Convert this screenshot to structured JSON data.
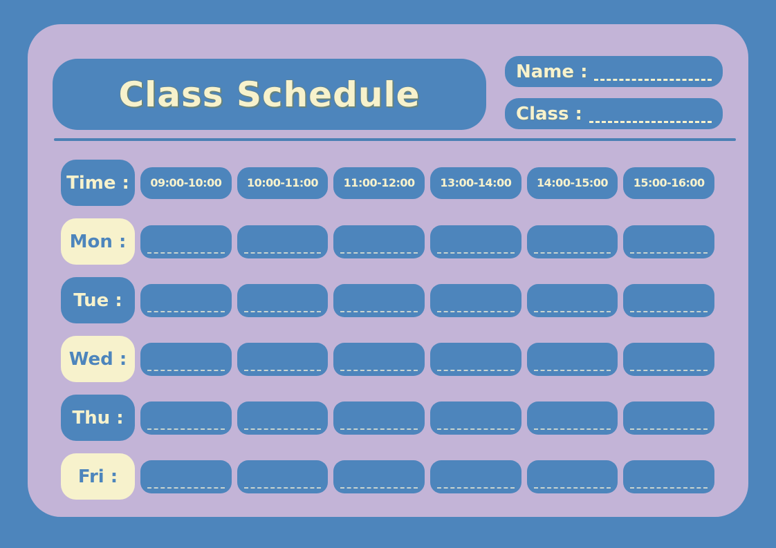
{
  "title": "Class Schedule",
  "fields": {
    "name_label": "Name :",
    "class_label": "Class :"
  },
  "schedule": {
    "time_label": "Time :",
    "time_slots": [
      "09:00-10:00",
      "10:00-11:00",
      "11:00-12:00",
      "13:00-14:00",
      "14:00-15:00",
      "15:00-16:00"
    ],
    "days": [
      "Mon :",
      "Tue :",
      "Wed :",
      "Thu :",
      "Fri :"
    ]
  },
  "colors": {
    "background_blue": "#4D85BC",
    "card_purple": "#C3B4D7",
    "cream": "#F7F2CC",
    "separator_blue": "#4B80B4"
  }
}
